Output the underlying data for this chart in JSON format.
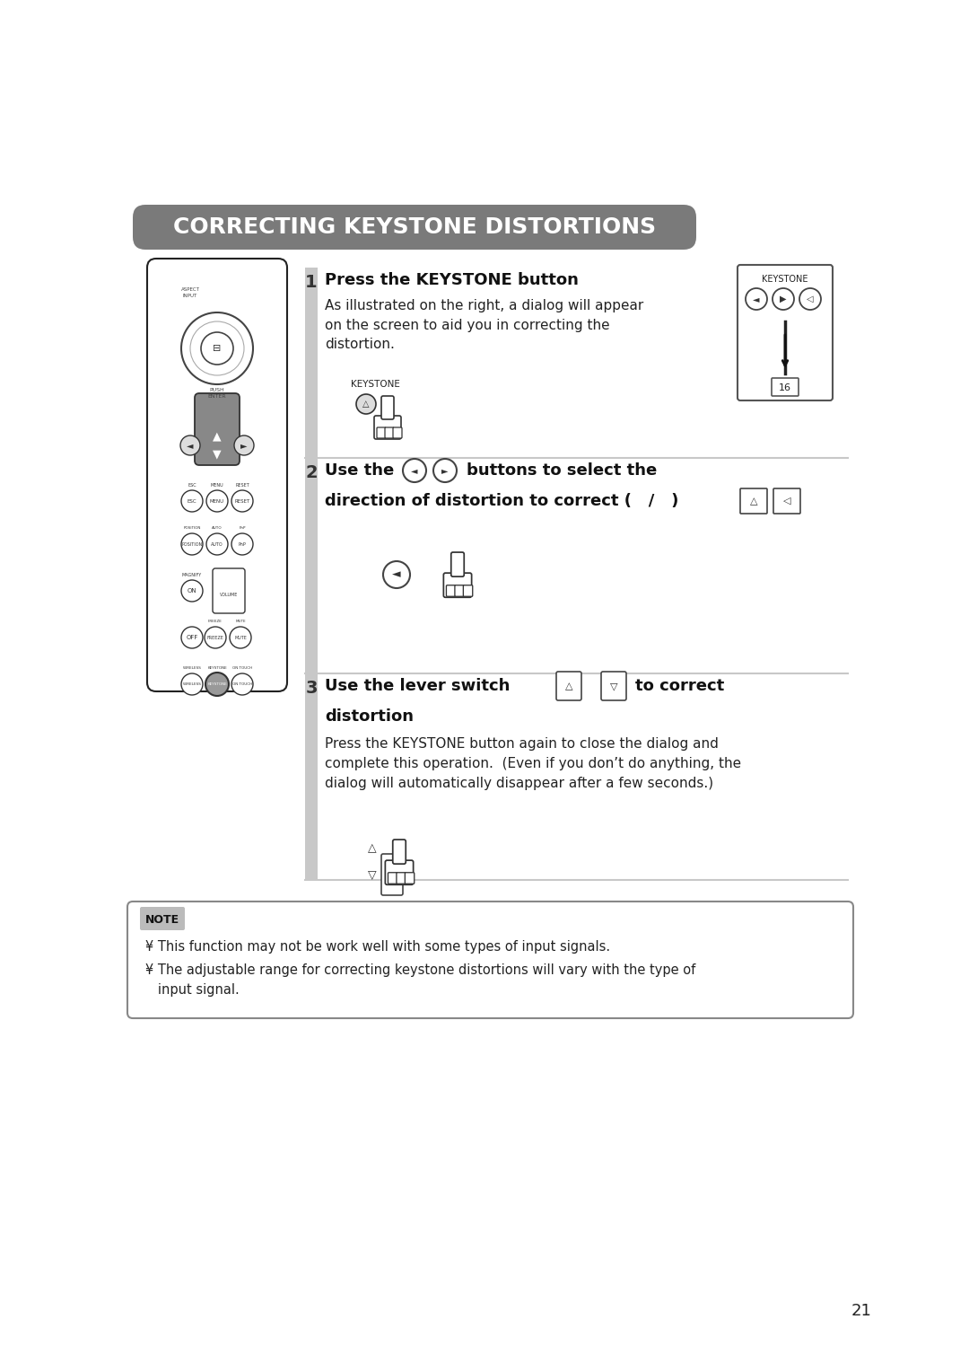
{
  "title": "CORRECTING KEYSTONE DISTORTIONS",
  "title_bg": "#7a7a7a",
  "title_color": "#ffffff",
  "bg_color": "#ffffff",
  "step1_heading": "Press the KEYSTONE button",
  "step1_body1": "As illustrated on the right, a dialog will appear",
  "step1_body2": "on the screen to aid you in correcting the",
  "step1_body3": "distortion.",
  "step2_line1": "Use the            buttons to select the",
  "step2_line2": "direction of distortion to correct (   /   )",
  "step3_heading1": "Use the lever switch               /          to correct",
  "step3_heading2": "distortion",
  "step3_body1": "Press the KEYSTONE button again to close the dialog and",
  "step3_body2": "complete this operation.  (Even if you don’t do anything, the",
  "step3_body3": "dialog will automatically disappear after a few seconds.)",
  "note_label": "NOTE",
  "note_line1": "¥ This function may not be work well with some types of input signals.",
  "note_line2": "¥ The adjustable range for correcting keystone distortions will vary with the type of",
  "note_line3": "   input signal.",
  "page_num": "21",
  "separator_color": "#c8c8c8",
  "step_bar_color": "#c8c8c8"
}
